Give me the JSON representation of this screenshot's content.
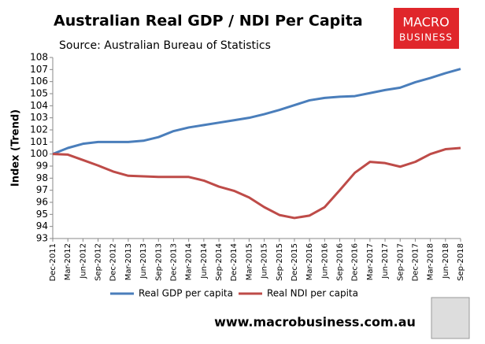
{
  "chart_data": {
    "type": "line",
    "title": "Australian Real GDP / NDI Per Capita",
    "subtitle": "Source: Australian Bureau of Statistics",
    "y_label": "Index (Trend)",
    "logo": [
      "MACRO",
      "BUSINESS"
    ],
    "footer": "www.macrobusiness.com.au",
    "categories": [
      "Dec-2011",
      "Mar-2012",
      "Jun-2012",
      "Sep-2012",
      "Dec-2012",
      "Mar-2013",
      "Jun-2013",
      "Sep-2013",
      "Dec-2013",
      "Mar-2014",
      "Jun-2014",
      "Sep-2014",
      "Dec-2014",
      "Mar-2015",
      "Jun-2015",
      "Sep-2015",
      "Dec-2015",
      "Mar-2016",
      "Jun-2016",
      "Sep-2016",
      "Dec-2016",
      "Mar-2017",
      "Jun-2017",
      "Sep-2017",
      "Dec-2017",
      "Mar-2018",
      "Jun-2018",
      "Sep-2018"
    ],
    "series": [
      {
        "name": "Real GDP per capita",
        "color": "#4a7ebb",
        "values": [
          100,
          100.5,
          100.85,
          101.0,
          101.0,
          101.0,
          101.1,
          101.4,
          101.9,
          102.2,
          102.4,
          102.6,
          102.8,
          103.0,
          103.3,
          103.65,
          104.05,
          104.45,
          104.65,
          104.75,
          104.8,
          105.05,
          105.3,
          105.5,
          105.95,
          106.3,
          106.7,
          107.05
        ]
      },
      {
        "name": "Real NDI per capita",
        "color": "#be4b48",
        "values": [
          100,
          99.95,
          99.5,
          99.05,
          98.55,
          98.2,
          98.15,
          98.1,
          98.1,
          98.1,
          97.8,
          97.3,
          96.95,
          96.4,
          95.6,
          94.95,
          94.7,
          94.9,
          95.6,
          97.0,
          98.45,
          99.35,
          99.25,
          98.95,
          99.35,
          100.0,
          100.4,
          100.5
        ]
      }
    ],
    "ylim": [
      93,
      108
    ],
    "yticks": [
      93,
      94,
      95,
      96,
      97,
      98,
      99,
      100,
      101,
      102,
      103,
      104,
      105,
      106,
      107,
      108
    ],
    "legend": "bottom"
  }
}
